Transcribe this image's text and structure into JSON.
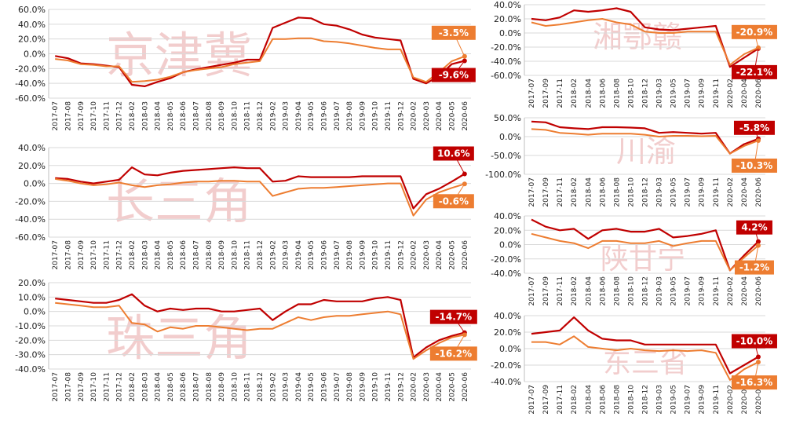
{
  "colors": {
    "series_a": "#c00000",
    "series_b": "#ed7d31",
    "grid": "#d9d9d9",
    "watermark": "#e8a6a6"
  },
  "chart_data": [
    {
      "type": "line",
      "watermark": "京津冀",
      "yticks": [
        "60.0%",
        "40.0%",
        "20.0%",
        "0.0%",
        "-20.0%",
        "-40.0%",
        "-60.0%"
      ],
      "ylim": [
        -60,
        60
      ],
      "x": [
        "2017-07",
        "2017-08",
        "2017-09",
        "2017-10",
        "2017-11",
        "2017-12",
        "2018-02",
        "2018-03",
        "2018-04",
        "2018-05",
        "2018-06",
        "2018-07",
        "2018-08",
        "2018-09",
        "2018-10",
        "2018-11",
        "2018-12",
        "2019-02",
        "2019-03",
        "2019-04",
        "2019-05",
        "2019-06",
        "2019-07",
        "2019-08",
        "2019-09",
        "2019-10",
        "2019-11",
        "2019-12",
        "2020-02",
        "2020-03",
        "2020-04",
        "2020-05",
        "2020-06"
      ],
      "series": [
        {
          "values": [
            -3,
            -6,
            -13,
            -14,
            -16,
            -18,
            -42,
            -44,
            -38,
            -33,
            -25,
            -21,
            -18,
            -15,
            -12,
            -8,
            -8,
            35,
            42,
            49,
            48,
            40,
            38,
            33,
            26,
            22,
            20,
            18,
            -34,
            -40,
            -30,
            -14,
            -9.6
          ]
        },
        {
          "values": [
            -7,
            -9,
            -14,
            -15,
            -17,
            -17,
            -38,
            -37,
            -35,
            -31,
            -25,
            -22,
            -20,
            -18,
            -14,
            -12,
            -10,
            20,
            20,
            21,
            21,
            17,
            16,
            14,
            11,
            8,
            6,
            6,
            -32,
            -38,
            -25,
            -10,
            -3.5
          ]
        }
      ],
      "callouts": [
        {
          "series": 0,
          "label": "-9.6%"
        },
        {
          "series": 1,
          "label": "-3.5%"
        }
      ]
    },
    {
      "type": "line",
      "watermark": "长三角",
      "yticks": [
        "40.0%",
        "20.0%",
        "0.0%",
        "-20.0%",
        "-40.0%",
        "-60.0%"
      ],
      "ylim": [
        -60,
        40
      ],
      "x": [
        "2017-07",
        "2017-08",
        "2017-09",
        "2017-10",
        "2017-11",
        "2017-12",
        "2018-02",
        "2018-03",
        "2018-04",
        "2018-05",
        "2018-06",
        "2018-07",
        "2018-08",
        "2018-09",
        "2018-10",
        "2018-11",
        "2018-12",
        "2019-02",
        "2019-03",
        "2019-04",
        "2019-05",
        "2019-06",
        "2019-07",
        "2019-08",
        "2019-09",
        "2019-10",
        "2019-11",
        "2019-12",
        "2020-02",
        "2020-03",
        "2020-04",
        "2020-05",
        "2020-06"
      ],
      "series": [
        {
          "values": [
            6,
            5,
            2,
            0,
            2,
            4,
            18,
            10,
            9,
            12,
            14,
            15,
            16,
            17,
            18,
            17,
            17,
            2,
            3,
            8,
            7,
            7,
            7,
            7,
            8,
            8,
            8,
            8,
            -28,
            -12,
            -6,
            2,
            10.6
          ]
        },
        {
          "values": [
            5,
            3,
            0,
            -2,
            -1,
            1,
            -2,
            -4,
            -2,
            -1,
            1,
            2,
            2,
            3,
            3,
            2,
            2,
            -14,
            -10,
            -6,
            -5,
            -5,
            -4,
            -3,
            -2,
            -1,
            0,
            0,
            -36,
            -18,
            -10,
            -5,
            -0.6
          ]
        }
      ],
      "callouts": [
        {
          "series": 0,
          "label": "10.6%"
        },
        {
          "series": 1,
          "label": "-0.6%"
        }
      ]
    },
    {
      "type": "line",
      "watermark": "珠三角",
      "yticks": [
        "20.0%",
        "10.0%",
        "0.0%",
        "-10.0%",
        "-20.0%",
        "-30.0%",
        "-40.0%"
      ],
      "ylim": [
        -40,
        20
      ],
      "x": [
        "2017-07",
        "2017-08",
        "2017-09",
        "2017-10",
        "2017-11",
        "2017-12",
        "2018-02",
        "2018-03",
        "2018-04",
        "2018-05",
        "2018-06",
        "2018-07",
        "2018-08",
        "2018-09",
        "2018-10",
        "2018-11",
        "2018-12",
        "2019-02",
        "2019-03",
        "2019-04",
        "2019-05",
        "2019-06",
        "2019-07",
        "2019-08",
        "2019-09",
        "2019-10",
        "2019-11",
        "2019-12",
        "2020-02",
        "2020-03",
        "2020-04",
        "2020-05",
        "2020-06"
      ],
      "series": [
        {
          "values": [
            9,
            8,
            7,
            6,
            6,
            8,
            12,
            4,
            0,
            2,
            1,
            2,
            2,
            0,
            0,
            1,
            2,
            -6,
            0,
            5,
            5,
            8,
            7,
            7,
            7,
            9,
            10,
            8,
            -32,
            -25,
            -20,
            -17,
            -14.7
          ]
        },
        {
          "values": [
            6,
            5,
            4,
            3,
            3,
            4,
            -8,
            -9,
            -14,
            -11,
            -12,
            -10,
            -10,
            -11,
            -12,
            -13,
            -12,
            -12,
            -8,
            -4,
            -6,
            -4,
            -3,
            -3,
            -2,
            -1,
            0,
            -2,
            -33,
            -27,
            -22,
            -18,
            -16.2
          ]
        }
      ],
      "callouts": [
        {
          "series": 0,
          "label": "-14.7%"
        },
        {
          "series": 1,
          "label": "-16.2%"
        }
      ]
    },
    {
      "type": "line",
      "watermark": "湘鄂赣",
      "yticks": [
        "40.0%",
        "20.0%",
        "0.0%",
        "-20.0%",
        "-40.0%",
        "-60.0%"
      ],
      "ylim": [
        -60,
        40
      ],
      "x": [
        "2017-07",
        "2017-09",
        "2017-11",
        "2018-02",
        "2018-04",
        "2018-06",
        "2018-08",
        "2018-10",
        "2018-12",
        "2019-03",
        "2019-05",
        "2019-07",
        "2019-09",
        "2019-11",
        "2020-02",
        "2020-04",
        "2020-06"
      ],
      "series": [
        {
          "values": [
            20,
            18,
            22,
            32,
            30,
            32,
            35,
            30,
            8,
            5,
            4,
            6,
            8,
            10,
            -48,
            -35,
            -22.1
          ]
        },
        {
          "values": [
            15,
            10,
            12,
            15,
            18,
            20,
            15,
            12,
            2,
            0,
            0,
            2,
            2,
            2,
            -45,
            -30,
            -20.9
          ]
        }
      ],
      "callouts": [
        {
          "series": 0,
          "label": "-22.1%"
        },
        {
          "series": 1,
          "label": "-20.9%"
        }
      ]
    },
    {
      "type": "line",
      "watermark": "川渝",
      "yticks": [
        "50.0%",
        "0.0%",
        "-50.0%",
        "-100.0%"
      ],
      "ylim": [
        -100,
        50
      ],
      "x": [
        "2017-07",
        "2017-09",
        "2017-11",
        "2018-02",
        "2018-04",
        "2018-06",
        "2018-08",
        "2018-10",
        "2018-12",
        "2019-03",
        "2019-05",
        "2019-07",
        "2019-09",
        "2019-11",
        "2020-02",
        "2020-04",
        "2020-06"
      ],
      "series": [
        {
          "values": [
            40,
            38,
            25,
            22,
            20,
            25,
            25,
            24,
            22,
            10,
            12,
            10,
            8,
            10,
            -45,
            -20,
            -5.8
          ]
        },
        {
          "values": [
            20,
            18,
            10,
            8,
            5,
            8,
            8,
            8,
            5,
            0,
            2,
            2,
            1,
            2,
            -45,
            -25,
            -10.3
          ]
        }
      ],
      "callouts": [
        {
          "series": 0,
          "label": "-5.8%"
        },
        {
          "series": 1,
          "label": "-10.3%"
        }
      ]
    },
    {
      "type": "line",
      "watermark": "陕甘宁",
      "yticks": [
        "40.0%",
        "20.0%",
        "0.0%",
        "-20.0%",
        "-40.0%"
      ],
      "ylim": [
        -40,
        40
      ],
      "x": [
        "2017-07",
        "2017-09",
        "2017-11",
        "2018-02",
        "2018-04",
        "2018-06",
        "2018-08",
        "2018-10",
        "2018-12",
        "2019-03",
        "2019-05",
        "2019-07",
        "2019-09",
        "2019-11",
        "2020-02",
        "2020-04",
        "2020-06"
      ],
      "series": [
        {
          "values": [
            35,
            25,
            20,
            22,
            8,
            20,
            22,
            18,
            18,
            22,
            10,
            12,
            15,
            20,
            -36,
            -15,
            4.2
          ]
        },
        {
          "values": [
            15,
            10,
            5,
            2,
            -5,
            5,
            5,
            2,
            2,
            5,
            -2,
            2,
            5,
            5,
            -36,
            -18,
            -1.2
          ]
        }
      ],
      "callouts": [
        {
          "series": 0,
          "label": "4.2%"
        },
        {
          "series": 1,
          "label": "-1.2%"
        }
      ]
    },
    {
      "type": "line",
      "watermark": "东三省",
      "yticks": [
        "40.0%",
        "20.0%",
        "0.0%",
        "-20.0%",
        "-40.0%"
      ],
      "ylim": [
        -40,
        40
      ],
      "x": [
        "2017-07",
        "2017-09",
        "2017-11",
        "2018-02",
        "2018-04",
        "2018-06",
        "2018-08",
        "2018-10",
        "2018-12",
        "2019-03",
        "2019-05",
        "2019-07",
        "2019-09",
        "2019-11",
        "2020-02",
        "2020-04",
        "2020-06"
      ],
      "series": [
        {
          "values": [
            18,
            20,
            22,
            38,
            22,
            12,
            10,
            10,
            5,
            5,
            5,
            5,
            5,
            5,
            -30,
            -20,
            -10.0
          ]
        },
        {
          "values": [
            8,
            8,
            5,
            15,
            2,
            0,
            -2,
            0,
            -2,
            -3,
            -2,
            -3,
            -2,
            -5,
            -38,
            -25,
            -16.3
          ]
        }
      ],
      "callouts": [
        {
          "series": 0,
          "label": "-10.0%"
        },
        {
          "series": 1,
          "label": "-16.3%"
        }
      ]
    }
  ]
}
